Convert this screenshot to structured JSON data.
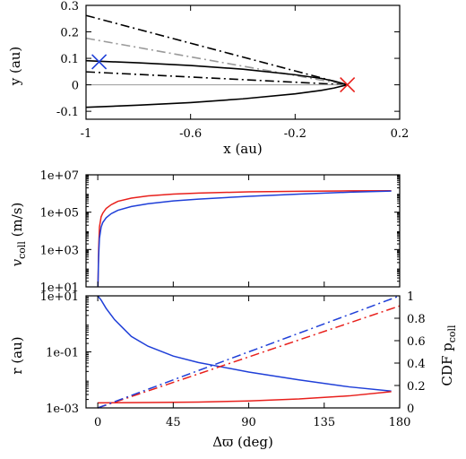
{
  "chart_data": [
    {
      "type": "line",
      "panel": "top",
      "xlabel": "x (au)",
      "ylabel": "y (au)",
      "xlim": [
        -1.0,
        0.2
      ],
      "ylim": [
        -0.13,
        0.3
      ],
      "x_ticks": [
        {
          "v": -1.0,
          "t": "-1"
        },
        {
          "v": -0.6,
          "t": "-0.6"
        },
        {
          "v": -0.2,
          "t": "-0.2"
        },
        {
          "v": 0.2,
          "t": "0.2"
        }
      ],
      "y_ticks": [
        {
          "v": -0.1,
          "t": "-0.1"
        },
        {
          "v": 0.0,
          "t": "0"
        },
        {
          "v": 0.1,
          "t": "0.1"
        },
        {
          "v": 0.2,
          "t": "0.2"
        },
        {
          "v": 0.3,
          "t": "0.3"
        }
      ],
      "series": [
        {
          "style": "dashdot",
          "color": "#000000",
          "x": [
            -1.0,
            0.0
          ],
          "y": [
            0.262,
            0.0
          ]
        },
        {
          "style": "dashdot",
          "color": "#9a9a9a",
          "x": [
            -1.0,
            0.0
          ],
          "y": [
            0.176,
            0.0
          ]
        },
        {
          "style": "dashdot",
          "color": "#000000",
          "x": [
            -1.0,
            0.0
          ],
          "y": [
            0.049,
            0.0
          ]
        },
        {
          "style": "solid",
          "color": "#9a9a9a",
          "x": [
            -1.0,
            0.0
          ],
          "y": [
            0.0,
            0.0
          ]
        },
        {
          "style": "solid",
          "color": "#000000",
          "x": [
            -1.0,
            -0.8,
            -0.6,
            -0.4,
            -0.2,
            -0.1,
            -0.05,
            0.0
          ],
          "y": [
            0.091,
            0.083,
            0.073,
            0.059,
            0.038,
            0.024,
            0.014,
            0.0
          ]
        },
        {
          "style": "solid",
          "color": "#000000",
          "x": [
            -1.0,
            -0.8,
            -0.6,
            -0.4,
            -0.2,
            -0.1,
            -0.05,
            0.0
          ],
          "y": [
            -0.085,
            -0.077,
            -0.067,
            -0.053,
            -0.034,
            -0.021,
            -0.012,
            0.0
          ]
        }
      ],
      "markers": [
        {
          "shape": "x",
          "color": "#1f3fd8",
          "x": -0.95,
          "y": 0.087
        },
        {
          "shape": "x",
          "color": "#e8201c",
          "x": 0.0,
          "y": 0.0
        }
      ]
    },
    {
      "type": "line",
      "panel": "middle",
      "xlabel": "",
      "ylabel": "v_coll (m/s)",
      "ylabel_main": "v",
      "ylabel_sub": "coll",
      "ylabel_unit": " (m/s)",
      "scale_y": "log",
      "xlim": [
        -7,
        180
      ],
      "ylim_log10": [
        1,
        7
      ],
      "y_ticks": [
        {
          "v": 1,
          "t": "1e+01"
        },
        {
          "v": 3,
          "t": "1e+03"
        },
        {
          "v": 5,
          "t": "1e+05"
        },
        {
          "v": 7,
          "t": "1e+07"
        }
      ],
      "series": [
        {
          "color": "#e8201c",
          "x": [
            0.1,
            0.5,
            1,
            2,
            3,
            5,
            8,
            12,
            20,
            30,
            45,
            60,
            90,
            120,
            150,
            175
          ],
          "log10_y": [
            1.0,
            3.0,
            4.2,
            4.75,
            4.95,
            5.2,
            5.4,
            5.58,
            5.75,
            5.87,
            5.97,
            6.02,
            6.09,
            6.12,
            6.14,
            6.15
          ]
        },
        {
          "color": "#1f3fd8",
          "x": [
            0.1,
            0.5,
            1,
            2,
            3,
            5,
            8,
            12,
            20,
            30,
            45,
            60,
            90,
            120,
            150,
            175
          ],
          "log10_y": [
            1.0,
            2.6,
            3.6,
            4.2,
            4.45,
            4.7,
            4.92,
            5.1,
            5.3,
            5.45,
            5.6,
            5.7,
            5.85,
            5.97,
            6.07,
            6.13
          ]
        }
      ]
    },
    {
      "type": "line",
      "panel": "bottom",
      "xlabel": "Δϖ (deg)",
      "ylabel": "r (au)",
      "ylabel2": "CDF p_coll",
      "ylabel2_main": "CDF p",
      "ylabel2_sub": "coll",
      "scale_y": "log",
      "xlim": [
        -7,
        180
      ],
      "ylim_log10": [
        -3,
        1
      ],
      "y2lim": [
        0,
        1
      ],
      "x_ticks": [
        {
          "v": 0,
          "t": "0"
        },
        {
          "v": 45,
          "t": "45"
        },
        {
          "v": 90,
          "t": "90"
        },
        {
          "v": 135,
          "t": "135"
        },
        {
          "v": 180,
          "t": "180"
        }
      ],
      "y_ticks": [
        {
          "v": -3,
          "t": "1e-03"
        },
        {
          "v": -1,
          "t": "1e-01"
        },
        {
          "v": 1,
          "t": "1e+01"
        }
      ],
      "y2_ticks": [
        {
          "v": 0,
          "t": "0"
        },
        {
          "v": 0.2,
          "t": "0.2"
        },
        {
          "v": 0.4,
          "t": "0.4"
        },
        {
          "v": 0.6,
          "t": "0.6"
        },
        {
          "v": 0.8,
          "t": "0.8"
        },
        {
          "v": 1.0,
          "t": "1"
        }
      ],
      "series": [
        {
          "color": "#1f3fd8",
          "style": "solid",
          "axis": "left",
          "x": [
            0,
            2,
            5,
            10,
            15,
            20,
            30,
            45,
            60,
            75,
            90,
            120,
            150,
            175
          ],
          "log10_y": [
            1.0,
            0.85,
            0.55,
            0.15,
            -0.15,
            -0.45,
            -0.8,
            -1.15,
            -1.38,
            -1.55,
            -1.72,
            -2.0,
            -2.25,
            -2.4
          ]
        },
        {
          "color": "#e8201c",
          "style": "solid",
          "axis": "left",
          "x": [
            0,
            30,
            60,
            90,
            120,
            150,
            175
          ],
          "log10_y": [
            -2.82,
            -2.81,
            -2.79,
            -2.75,
            -2.68,
            -2.57,
            -2.42
          ]
        },
        {
          "color": "#e8201c",
          "style": "dashdot",
          "axis": "right",
          "x": [
            0,
            180
          ],
          "y": [
            0.0,
            0.91
          ]
        },
        {
          "color": "#1f3fd8",
          "style": "dashdot",
          "axis": "right",
          "x": [
            0,
            180
          ],
          "y": [
            0.0,
            1.0
          ]
        }
      ]
    }
  ]
}
